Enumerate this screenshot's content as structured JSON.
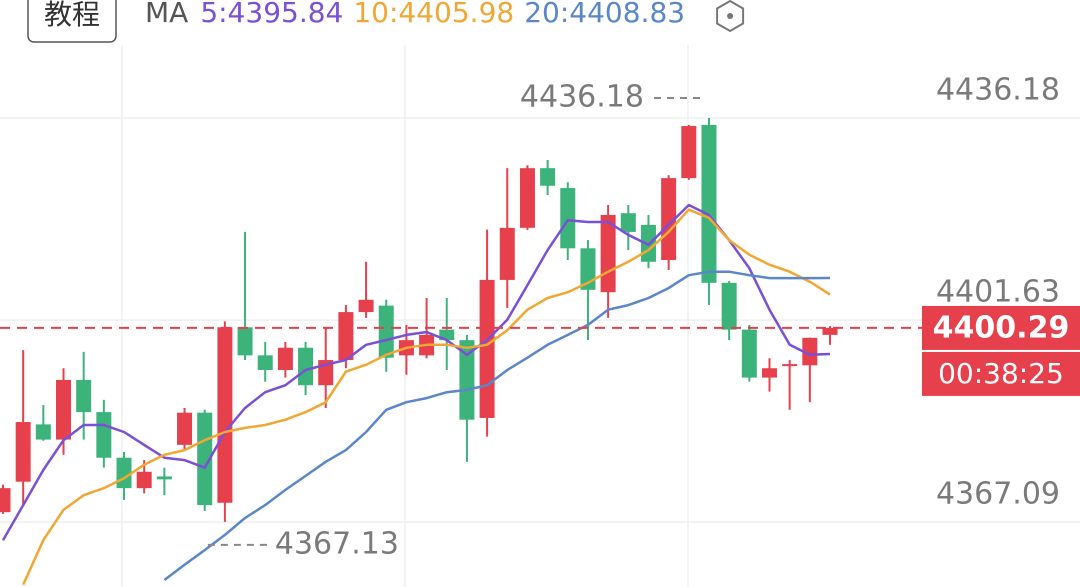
{
  "header": {
    "button": "教程"
  },
  "chart_data": {
    "type": "candlestick",
    "legend_title": "MA",
    "up_color": "#e5404c",
    "down_color": "#3bb37a",
    "ylim": [
      4356.0,
      4456.35
    ],
    "yticks": [
      4367.09,
      4401.63,
      4436.18
    ],
    "grid": true,
    "max_label": 4436.18,
    "min_label": 4367.13,
    "current_price": 4400.29,
    "countdown": "00:38:25",
    "candles": {
      "open": [
        4368.8,
        4374.0,
        4383.8,
        4381.2,
        4391.4,
        4385.9,
        4378.1,
        4372.9,
        4374.9,
        4380.3,
        4385.8,
        4370.4,
        4400.4,
        4395.6,
        4393.1,
        4396.9,
        4390.5,
        4394.8,
        4403.0,
        4404.1,
        4395.6,
        4395.6,
        4400.0,
        4398.2,
        4384.9,
        4408.5,
        4417.4,
        4427.6,
        4424.2,
        4413.9,
        4406.4,
        4419.9,
        4417.9,
        4411.9,
        4425.9,
        4435.0,
        4408.0,
        4400.0,
        4391.8,
        4393.8,
        4393.9,
        4399.1
      ],
      "high": [
        4373.5,
        4396.5,
        4387.1,
        4393.4,
        4396.2,
        4388.0,
        4379.1,
        4377.7,
        4376.4,
        4386.6,
        4386.3,
        4401.4,
        4416.7,
        4397.9,
        4397.9,
        4397.9,
        4400.4,
        4404.2,
        4411.6,
        4405.1,
        4400.8,
        4405.4,
        4405.4,
        4399.1,
        4417.1,
        4427.6,
        4428.1,
        4429.0,
        4425.2,
        4415.3,
        4421.3,
        4421.3,
        4419.6,
        4426.4,
        4435.0,
        4436.18,
        4408.3,
        4400.8,
        4395.1,
        4394.8,
        4398.6,
        4400.6
      ],
      "low": [
        4368.5,
        4370.0,
        4381.0,
        4378.6,
        4381.2,
        4376.4,
        4370.9,
        4372.0,
        4371.7,
        4379.4,
        4369.0,
        4367.13,
        4394.8,
        4391.1,
        4391.8,
        4388.8,
        4386.6,
        4393.4,
        4402.0,
        4392.8,
        4392.3,
        4395.1,
        4393.1,
        4377.4,
        4381.7,
        4403.7,
        4417.0,
        4423.0,
        4411.9,
        4398.2,
        4402.0,
        4413.6,
        4410.5,
        4410.2,
        4425.6,
        4404.2,
        4398.2,
        4391.1,
        4389.4,
        4386.3,
        4387.6,
        4397.4
      ],
      "close": [
        4372.9,
        4384.2,
        4381.2,
        4391.4,
        4385.9,
        4378.1,
        4372.9,
        4375.7,
        4374.4,
        4385.8,
        4370.0,
        4400.4,
        4395.6,
        4393.1,
        4396.9,
        4390.5,
        4394.8,
        4403.0,
        4405.1,
        4395.2,
        4398.2,
        4399.1,
        4398.2,
        4384.6,
        4408.5,
        4417.4,
        4427.6,
        4424.6,
        4413.9,
        4406.8,
        4419.6,
        4416.7,
        4411.6,
        4425.9,
        4434.8,
        4408.0,
        4400.0,
        4391.8,
        4393.4,
        4394.1,
        4398.6,
        4400.29
      ]
    },
    "series": [
      {
        "name": "5:4395.84",
        "color": "#7b4fd6",
        "values": [
          4364.0,
          4370.0,
          4376.0,
          4381.1,
          4383.7,
          4383.7,
          4382.5,
          4380.3,
          4378.1,
          4377.7,
          4376.4,
          4382.5,
          4386.6,
          4389.3,
          4390.5,
          4393.1,
          4394.0,
          4394.8,
          4397.4,
          4398.2,
          4399.1,
          4399.6,
          4398.2,
          4395.7,
          4398.2,
          4401.7,
          4407.6,
          4413.6,
          4418.7,
          4418.4,
          4418.4,
          4416.2,
          4414.5,
          4417.9,
          4421.3,
          4419.6,
          4415.3,
          4410.5,
          4403.4,
          4397.4,
          4395.7,
          4395.84
        ]
      },
      {
        "name": "10:4405.98",
        "color": "#f0a733",
        "values": [
          null,
          4356.4,
          4364.0,
          4369.2,
          4371.7,
          4372.9,
          4374.6,
          4376.9,
          4378.6,
          4379.4,
          4381.1,
          4382.5,
          4383.2,
          4383.7,
          4384.6,
          4385.9,
          4387.6,
          4392.8,
          4394.0,
          4395.7,
          4396.9,
          4397.4,
          4397.4,
          4396.9,
          4397.4,
          4399.9,
          4403.4,
          4405.4,
          4406.4,
          4408.0,
          4409.9,
          4411.6,
          4413.6,
          4416.7,
          4420.5,
          4419.1,
          4415.3,
          4412.8,
          4411.1,
          4409.9,
          4408.2,
          4405.98
        ]
      },
      {
        "name": "20:4408.83",
        "color": "#5b86c9",
        "values": [
          null,
          null,
          null,
          null,
          null,
          null,
          null,
          null,
          4357.2,
          4359.8,
          4362.3,
          4364.9,
          4367.8,
          4370.0,
          4372.6,
          4375.0,
          4377.4,
          4379.4,
          4382.5,
          4386.3,
          4387.6,
          4388.3,
          4389.3,
          4389.7,
          4390.5,
          4393.1,
          4395.2,
          4397.4,
          4399.1,
          4400.8,
          4403.4,
          4404.2,
          4405.4,
          4407.1,
          4409.3,
          4409.9,
          4409.9,
          4409.3,
          4408.8,
          4408.8,
          4408.8,
          4408.83
        ]
      }
    ]
  }
}
